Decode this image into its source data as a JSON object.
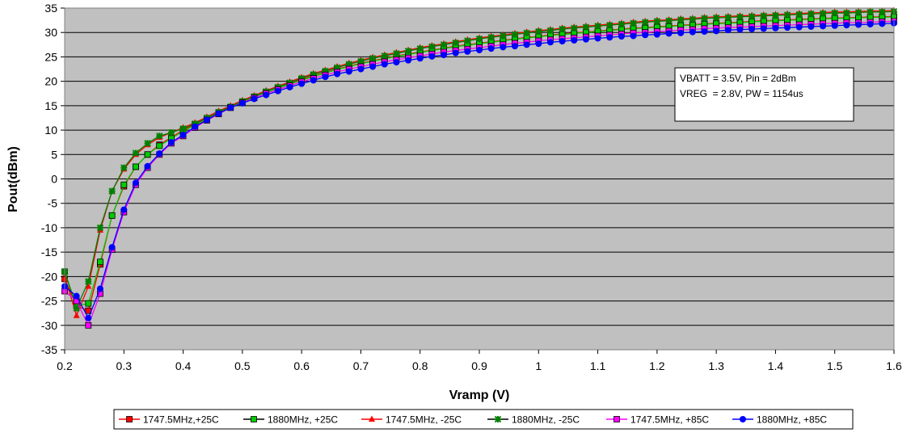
{
  "chart_data": {
    "type": "line",
    "title": "",
    "xlabel": "Vramp (V)",
    "ylabel": "Pout(dBm)",
    "xlim": [
      0.2,
      1.6
    ],
    "ylim": [
      -35,
      35
    ],
    "xticks": [
      "0.2",
      "0.3",
      "0.4",
      "0.5",
      "0.6",
      "0.7",
      "0.8",
      "0.9",
      "1",
      "1.1",
      "1.2",
      "1.3",
      "1.4",
      "1.5",
      "1.6"
    ],
    "yticks": [
      "35",
      "30",
      "25",
      "20",
      "15",
      "10",
      "5",
      "0",
      "-5",
      "-10",
      "-15",
      "-20",
      "-25",
      "-30",
      "-35"
    ],
    "grid": true,
    "legend_position": "bottom",
    "annotation": [
      "VBATT = 3.5V, Pin = 2dBm",
      "VREG  = 2.8V, PW = 1154us"
    ],
    "x": [
      0.2,
      0.22,
      0.24,
      0.26,
      0.28,
      0.3,
      0.32,
      0.34,
      0.36,
      0.38,
      0.4,
      0.42,
      0.44,
      0.46,
      0.48,
      0.5,
      0.52,
      0.54,
      0.56,
      0.58,
      0.6,
      0.62,
      0.64,
      0.66,
      0.68,
      0.7,
      0.72,
      0.74,
      0.76,
      0.78,
      0.8,
      0.82,
      0.84,
      0.86,
      0.88,
      0.9,
      0.92,
      0.94,
      0.96,
      0.98,
      1.0,
      1.02,
      1.04,
      1.06,
      1.08,
      1.1,
      1.12,
      1.14,
      1.16,
      1.18,
      1.2,
      1.22,
      1.24,
      1.26,
      1.28,
      1.3,
      1.32,
      1.34,
      1.36,
      1.38,
      1.4,
      1.42,
      1.44,
      1.46,
      1.48,
      1.5,
      1.52,
      1.54,
      1.56,
      1.58,
      1.6
    ],
    "series": [
      {
        "name": "1747.5MHz,+25C",
        "color": "#ff0000",
        "marker": "square",
        "values": [
          -20.5,
          -26,
          -27,
          -17.5,
          -7.5,
          -1.5,
          2.5,
          5,
          7,
          8.5,
          10,
          11.2,
          12.4,
          13.6,
          14.7,
          15.8,
          16.8,
          17.8,
          18.7,
          19.5,
          20.4,
          21.1,
          21.8,
          22.5,
          23.1,
          23.7,
          24.2,
          24.7,
          25.2,
          25.6,
          26,
          26.4,
          26.8,
          27.2,
          27.5,
          27.8,
          28.1,
          28.4,
          28.7,
          29,
          29.2,
          29.5,
          29.7,
          29.9,
          30.1,
          30.3,
          30.5,
          30.7,
          30.9,
          31,
          31.2,
          31.3,
          31.5,
          31.6,
          31.8,
          31.9,
          32,
          32.1,
          32.3,
          32.4,
          32.5,
          32.6,
          32.7,
          32.8,
          32.9,
          33,
          33,
          33.1,
          33.2,
          33.2,
          33.3
        ]
      },
      {
        "name": "1880MHz, +25C",
        "color": "#00cc00",
        "marker": "square",
        "values": [
          -19,
          -26,
          -25.5,
          -17,
          -7.5,
          -1.2,
          2.5,
          5,
          6.8,
          8.3,
          9.8,
          11,
          12.2,
          13.4,
          14.6,
          15.7,
          16.7,
          17.7,
          18.6,
          19.4,
          20.2,
          21,
          21.7,
          22.4,
          23,
          23.6,
          24.1,
          24.6,
          25.1,
          25.5,
          25.9,
          26.3,
          26.7,
          27.1,
          27.4,
          27.7,
          28,
          28.3,
          28.6,
          28.9,
          29.1,
          29.4,
          29.6,
          29.8,
          30,
          30.2,
          30.4,
          30.6,
          30.8,
          30.9,
          31.1,
          31.2,
          31.4,
          31.5,
          31.7,
          31.8,
          31.9,
          32,
          32.2,
          32.3,
          32.4,
          32.5,
          32.6,
          32.7,
          32.8,
          32.9,
          32.9,
          33,
          33.1,
          33.1,
          33.2
        ]
      },
      {
        "name": "1747.5MHz, -25C",
        "color": "#ff0000",
        "marker": "triangle",
        "values": [
          -20,
          -28,
          -22,
          -10.5,
          -2.5,
          2,
          5,
          7,
          8.5,
          9.5,
          10.5,
          11.5,
          12.7,
          13.9,
          15,
          16.1,
          17.1,
          18.1,
          19,
          19.9,
          20.8,
          21.6,
          22.3,
          23,
          23.7,
          24.3,
          24.9,
          25.4,
          25.9,
          26.4,
          26.9,
          27.3,
          27.7,
          28.1,
          28.5,
          28.9,
          29.2,
          29.5,
          29.8,
          30.1,
          30.4,
          30.6,
          30.9,
          31.1,
          31.3,
          31.5,
          31.7,
          31.9,
          32.1,
          32.3,
          32.5,
          32.6,
          32.8,
          32.9,
          33.1,
          33.2,
          33.3,
          33.4,
          33.5,
          33.6,
          33.7,
          33.8,
          33.9,
          34,
          34.1,
          34.2,
          34.2,
          34.3,
          34.4,
          34.4,
          34.5
        ]
      },
      {
        "name": "1880MHz, -25C",
        "color": "#008000",
        "marker": "star",
        "values": [
          -19,
          -26.5,
          -21,
          -10,
          -2.5,
          2.3,
          5.3,
          7.3,
          8.8,
          9.5,
          10.3,
          11.3,
          12.5,
          13.7,
          14.8,
          15.9,
          16.9,
          17.9,
          18.8,
          19.7,
          20.6,
          21.4,
          22.1,
          22.8,
          23.5,
          24.1,
          24.7,
          25.2,
          25.7,
          26.2,
          26.7,
          27.1,
          27.5,
          27.9,
          28.3,
          28.7,
          29,
          29.3,
          29.6,
          29.9,
          30.2,
          30.4,
          30.7,
          30.9,
          31.1,
          31.3,
          31.5,
          31.7,
          31.9,
          32.1,
          32.3,
          32.4,
          32.6,
          32.7,
          32.9,
          33,
          33.1,
          33.2,
          33.3,
          33.4,
          33.5,
          33.6,
          33.7,
          33.8,
          33.9,
          34,
          34,
          34.1,
          34.2,
          34.2,
          34.3
        ]
      },
      {
        "name": "1747.5MHz, +85C",
        "color": "#ff00ff",
        "marker": "square",
        "values": [
          -23,
          -25,
          -30,
          -23.5,
          -14.5,
          -6.8,
          -1.2,
          2.3,
          5,
          7.3,
          8.8,
          10.5,
          12,
          13.3,
          14.6,
          15.6,
          16.6,
          17.5,
          18.3,
          19.1,
          19.9,
          20.6,
          21.3,
          21.9,
          22.5,
          23,
          23.5,
          24,
          24.4,
          24.8,
          25.2,
          25.6,
          26,
          26.3,
          26.6,
          26.9,
          27.2,
          27.5,
          27.8,
          28,
          28.3,
          28.5,
          28.7,
          28.9,
          29.1,
          29.3,
          29.5,
          29.7,
          29.9,
          30,
          30.2,
          30.3,
          30.5,
          30.6,
          30.8,
          30.9,
          31,
          31.1,
          31.2,
          31.3,
          31.4,
          31.5,
          31.6,
          31.7,
          31.8,
          31.9,
          32,
          32,
          32.1,
          32.2,
          32.3
        ]
      },
      {
        "name": "1880MHz, +85C",
        "color": "#0000ff",
        "marker": "circle",
        "values": [
          -22,
          -24,
          -28.5,
          -22.5,
          -14,
          -6.3,
          -0.8,
          2.6,
          5.2,
          7.5,
          9,
          10.7,
          12.1,
          13.4,
          14.6,
          15.5,
          16.4,
          17.2,
          18,
          18.8,
          19.5,
          20.2,
          20.9,
          21.5,
          22,
          22.5,
          23,
          23.5,
          23.9,
          24.3,
          24.7,
          25.1,
          25.4,
          25.8,
          26.1,
          26.4,
          26.7,
          27,
          27.2,
          27.5,
          27.7,
          28,
          28.2,
          28.4,
          28.6,
          28.8,
          29,
          29.2,
          29.3,
          29.5,
          29.6,
          29.8,
          29.9,
          30.1,
          30.2,
          30.3,
          30.5,
          30.6,
          30.7,
          30.8,
          30.9,
          31,
          31.1,
          31.2,
          31.3,
          31.4,
          31.5,
          31.6,
          31.7,
          31.8,
          31.9
        ]
      }
    ]
  }
}
